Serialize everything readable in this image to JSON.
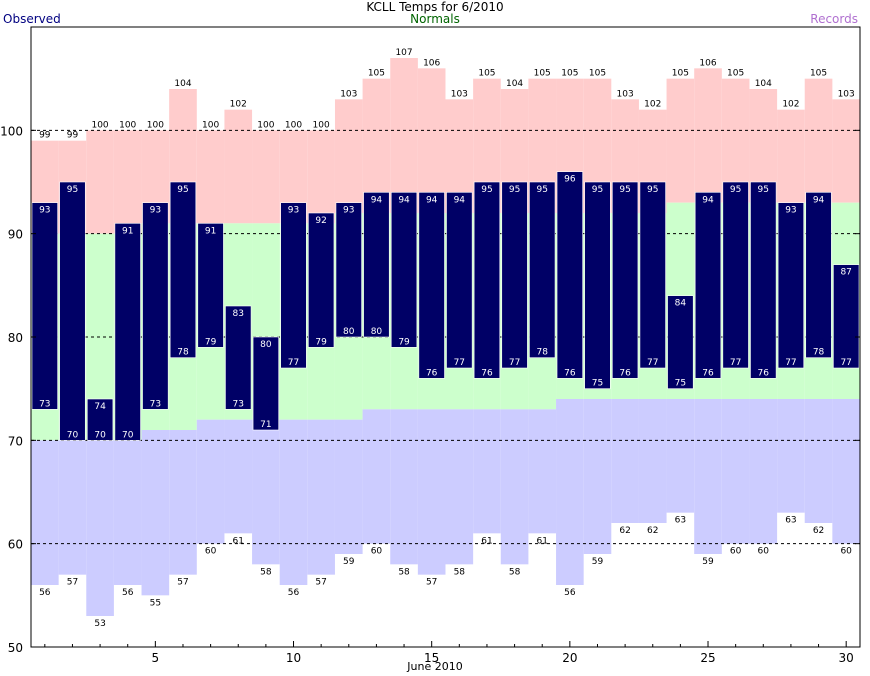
{
  "header": {
    "title": "KCLL Temps for 6/2010",
    "observed_label": "Observed",
    "normals_label": "Normals",
    "records_label": "Records"
  },
  "colors": {
    "observed": "#000066",
    "normal_band": "#ccffcc",
    "record_high_band": "#ffcccc",
    "record_low_band": "#ccccff",
    "observed_text": "#000080",
    "normals_text": "#006400",
    "records_text": "#b070d0"
  },
  "chart_data": {
    "type": "bar",
    "title": "KCLL Temps for 6/2010",
    "xlabel": "June 2010",
    "ylabel": "",
    "ylim": [
      50,
      110
    ],
    "xlim": [
      0.5,
      30.5
    ],
    "grid": true,
    "x_ticks": [
      5,
      10,
      15,
      20,
      25,
      30
    ],
    "y_ticks": [
      50,
      60,
      70,
      80,
      90,
      100
    ],
    "days": [
      1,
      2,
      3,
      4,
      5,
      6,
      7,
      8,
      9,
      10,
      11,
      12,
      13,
      14,
      15,
      16,
      17,
      18,
      19,
      20,
      21,
      22,
      23,
      24,
      25,
      26,
      27,
      28,
      29,
      30
    ],
    "series": [
      {
        "name": "Observed",
        "high": [
          93,
          95,
          74,
          91,
          93,
          95,
          91,
          83,
          80,
          93,
          92,
          93,
          94,
          94,
          94,
          94,
          95,
          95,
          95,
          96,
          95,
          95,
          95,
          84,
          94,
          95,
          95,
          93,
          94,
          87
        ],
        "low": [
          73,
          70,
          70,
          70,
          73,
          78,
          79,
          73,
          71,
          77,
          79,
          80,
          80,
          79,
          76,
          77,
          76,
          77,
          78,
          76,
          75,
          76,
          77,
          75,
          76,
          77,
          76,
          77,
          78,
          77
        ]
      },
      {
        "name": "Normals",
        "high": [
          90,
          90,
          90,
          90,
          91,
          91,
          91,
          91,
          91,
          91,
          91,
          92,
          92,
          92,
          92,
          92,
          92,
          92,
          92,
          92,
          92,
          92,
          92,
          93,
          93,
          93,
          93,
          93,
          93,
          93
        ],
        "low": [
          70,
          70,
          70,
          70,
          71,
          71,
          72,
          72,
          72,
          72,
          72,
          72,
          73,
          73,
          73,
          73,
          73,
          73,
          73,
          74,
          74,
          74,
          74,
          74,
          74,
          74,
          74,
          74,
          74,
          74
        ]
      },
      {
        "name": "Records",
        "high": [
          99,
          99,
          100,
          100,
          100,
          104,
          100,
          102,
          100,
          100,
          100,
          103,
          105,
          107,
          106,
          103,
          105,
          104,
          105,
          105,
          105,
          103,
          102,
          105,
          106,
          105,
          104,
          102,
          105,
          103
        ],
        "low": [
          56,
          57,
          53,
          56,
          55,
          57,
          60,
          61,
          58,
          56,
          57,
          59,
          60,
          58,
          57,
          58,
          61,
          58,
          61,
          56,
          59,
          62,
          62,
          63,
          59,
          60,
          60,
          63,
          62,
          60
        ]
      }
    ]
  }
}
